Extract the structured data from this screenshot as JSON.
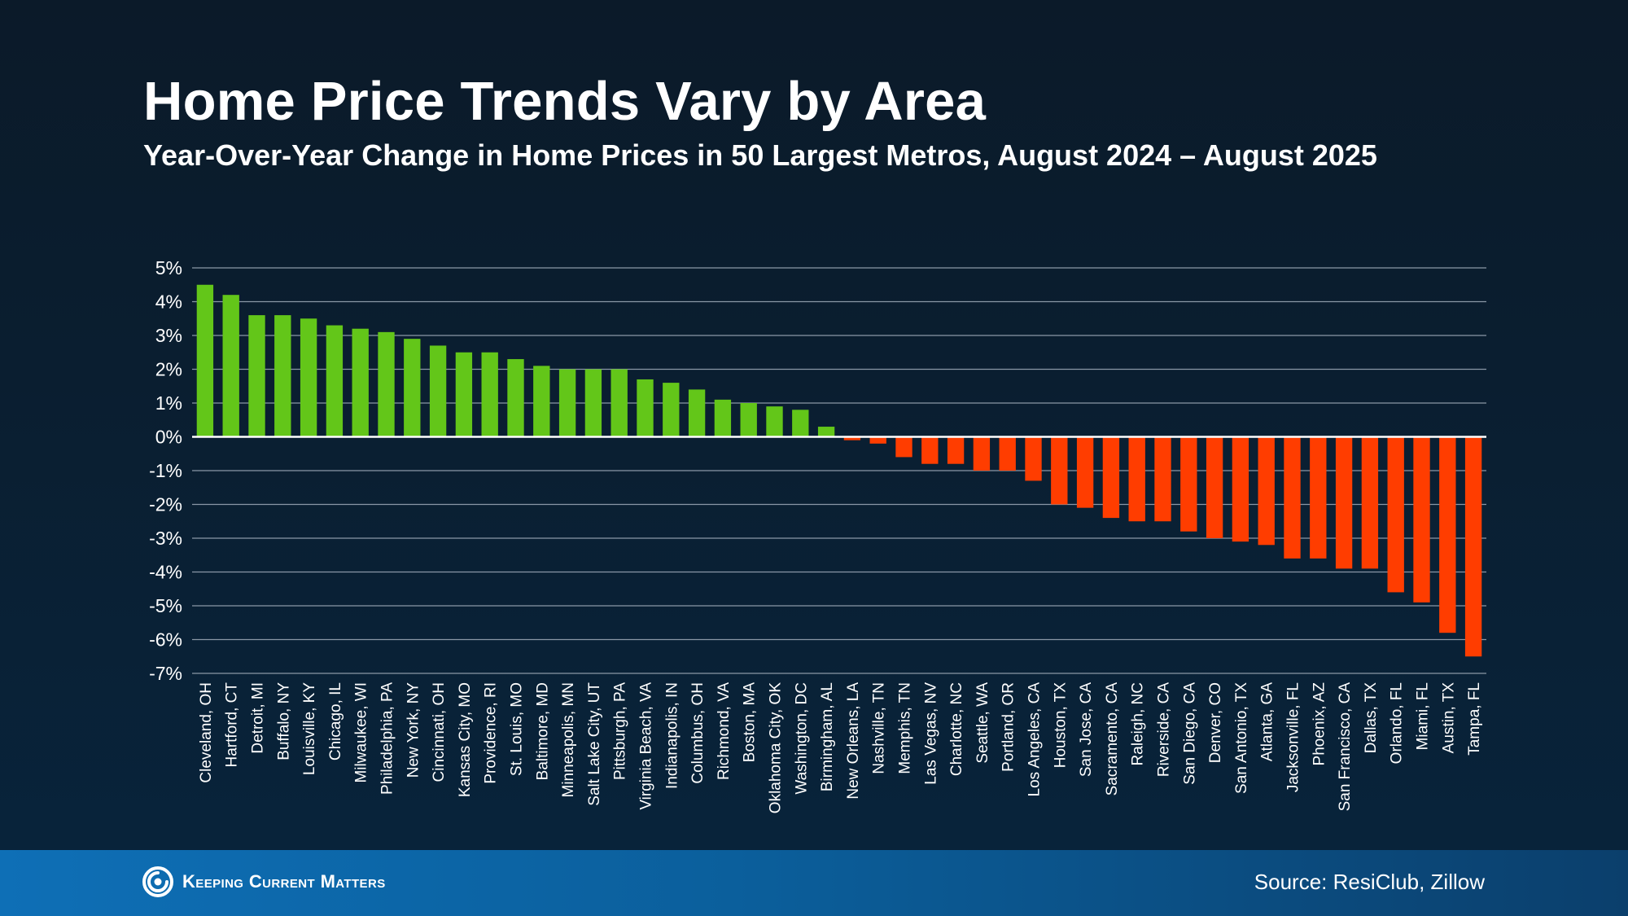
{
  "header": {
    "title": "Home Price Trends Vary by Area",
    "subtitle": "Year-Over-Year Change in Home Prices in 50 Largest Metros, August 2024 – August 2025"
  },
  "footer": {
    "brand": "Keeping Current Matters",
    "source": "Source: ResiClub, Zillow"
  },
  "colors": {
    "positive": "#63c619",
    "negative": "#ff3d00",
    "grid": "#8a98a6",
    "zero_line": "#ffffff"
  },
  "chart_data": {
    "type": "bar",
    "title": "Home Price Trends Vary by Area",
    "subtitle": "Year-Over-Year Change in Home Prices in 50 Largest Metros, August 2024 – August 2025",
    "xlabel": "",
    "ylabel": "",
    "ylim": [
      -7,
      5
    ],
    "yticks": [
      5,
      4,
      3,
      2,
      1,
      0,
      -1,
      -2,
      -3,
      -4,
      -5,
      -6,
      -7
    ],
    "ytick_labels": [
      "5%",
      "4%",
      "3%",
      "2%",
      "1%",
      "0%",
      "-1%",
      "-2%",
      "-3%",
      "-4%",
      "-5%",
      "-6%",
      "-7%"
    ],
    "grid": true,
    "legend": false,
    "categories": [
      "Cleveland, OH",
      "Hartford, CT",
      "Detroit, MI",
      "Buffalo, NY",
      "Louisville, KY",
      "Chicago, IL",
      "Milwaukee, WI",
      "Philadelphia, PA",
      "New York, NY",
      "Cincinnati, OH",
      "Kansas City, MO",
      "Providence, RI",
      "St. Louis, MO",
      "Baltimore, MD",
      "Minneapolis, MN",
      "Salt Lake City, UT",
      "Pittsburgh, PA",
      "Virginia Beach, VA",
      "Indianapolis, IN",
      "Columbus, OH",
      "Richmond, VA",
      "Boston, MA",
      "Oklahoma City, OK",
      "Washington, DC",
      "Birmingham, AL",
      "New Orleans, LA",
      "Nashville, TN",
      "Memphis, TN",
      "Las Vegas, NV",
      "Charlotte, NC",
      "Seattle, WA",
      "Portland, OR",
      "Los Angeles, CA",
      "Houston, TX",
      "San Jose, CA",
      "Sacramento, CA",
      "Raleigh, NC",
      "Riverside, CA",
      "San Diego, CA",
      "Denver, CO",
      "San Antonio, TX",
      "Atlanta, GA",
      "Jacksonville, FL",
      "Phoenix, AZ",
      "San Francisco, CA",
      "Dallas, TX",
      "Orlando, FL",
      "Miami, FL",
      "Austin, TX",
      "Tampa, FL"
    ],
    "values": [
      4.5,
      4.2,
      3.6,
      3.6,
      3.5,
      3.3,
      3.2,
      3.1,
      2.9,
      2.7,
      2.5,
      2.5,
      2.3,
      2.1,
      2.0,
      2.0,
      2.0,
      1.7,
      1.6,
      1.4,
      1.1,
      1.0,
      0.9,
      0.8,
      0.3,
      -0.1,
      -0.2,
      -0.6,
      -0.8,
      -0.8,
      -1.0,
      -1.0,
      -1.3,
      -2.0,
      -2.1,
      -2.4,
      -2.5,
      -2.5,
      -2.8,
      -3.0,
      -3.1,
      -3.2,
      -3.6,
      -3.6,
      -3.9,
      -3.9,
      -4.6,
      -4.9,
      -5.8,
      -6.5
    ]
  }
}
